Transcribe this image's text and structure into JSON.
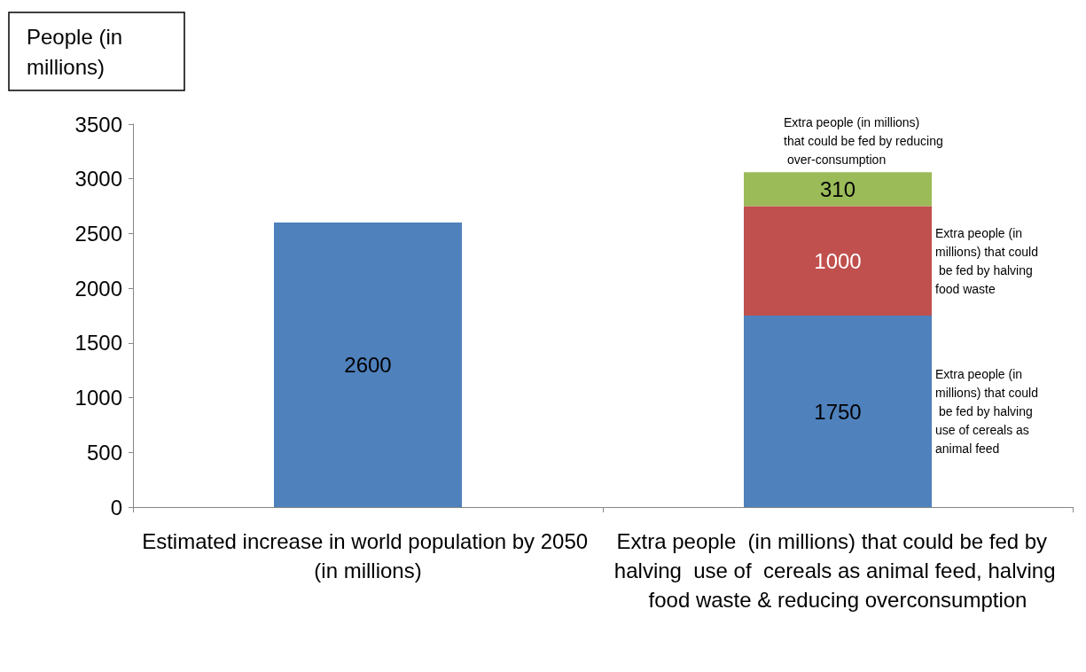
{
  "chart_data": {
    "type": "bar",
    "stacked": true,
    "ylabel": "People (in millions)",
    "categories": [
      "Estimated increase in world population by 2050 (in millions)",
      "Extra people  (in millions) that could be fed by  halving  use of  cereals as animal feed, halving food waste & reducing overconsumption"
    ],
    "series": [
      {
        "color": "#4f81bd",
        "values": [
          2600,
          1750
        ]
      },
      {
        "color": "#c0504d",
        "values": [
          null,
          1000
        ]
      },
      {
        "color": "#9bbb59",
        "values": [
          null,
          310
        ]
      }
    ],
    "ylim": [
      0,
      3500
    ],
    "yticks": [
      0,
      500,
      1000,
      1500,
      2000,
      2500,
      3000,
      3500
    ],
    "grid": false,
    "data_labels": true,
    "annotations": [
      "Extra people (in millions) that could be fed by reducing over-consumption",
      "Extra people (in millions) that could be fed by halving food waste",
      "Extra people (in millions) that could be fed by halving use of cereals as animal feed"
    ]
  }
}
